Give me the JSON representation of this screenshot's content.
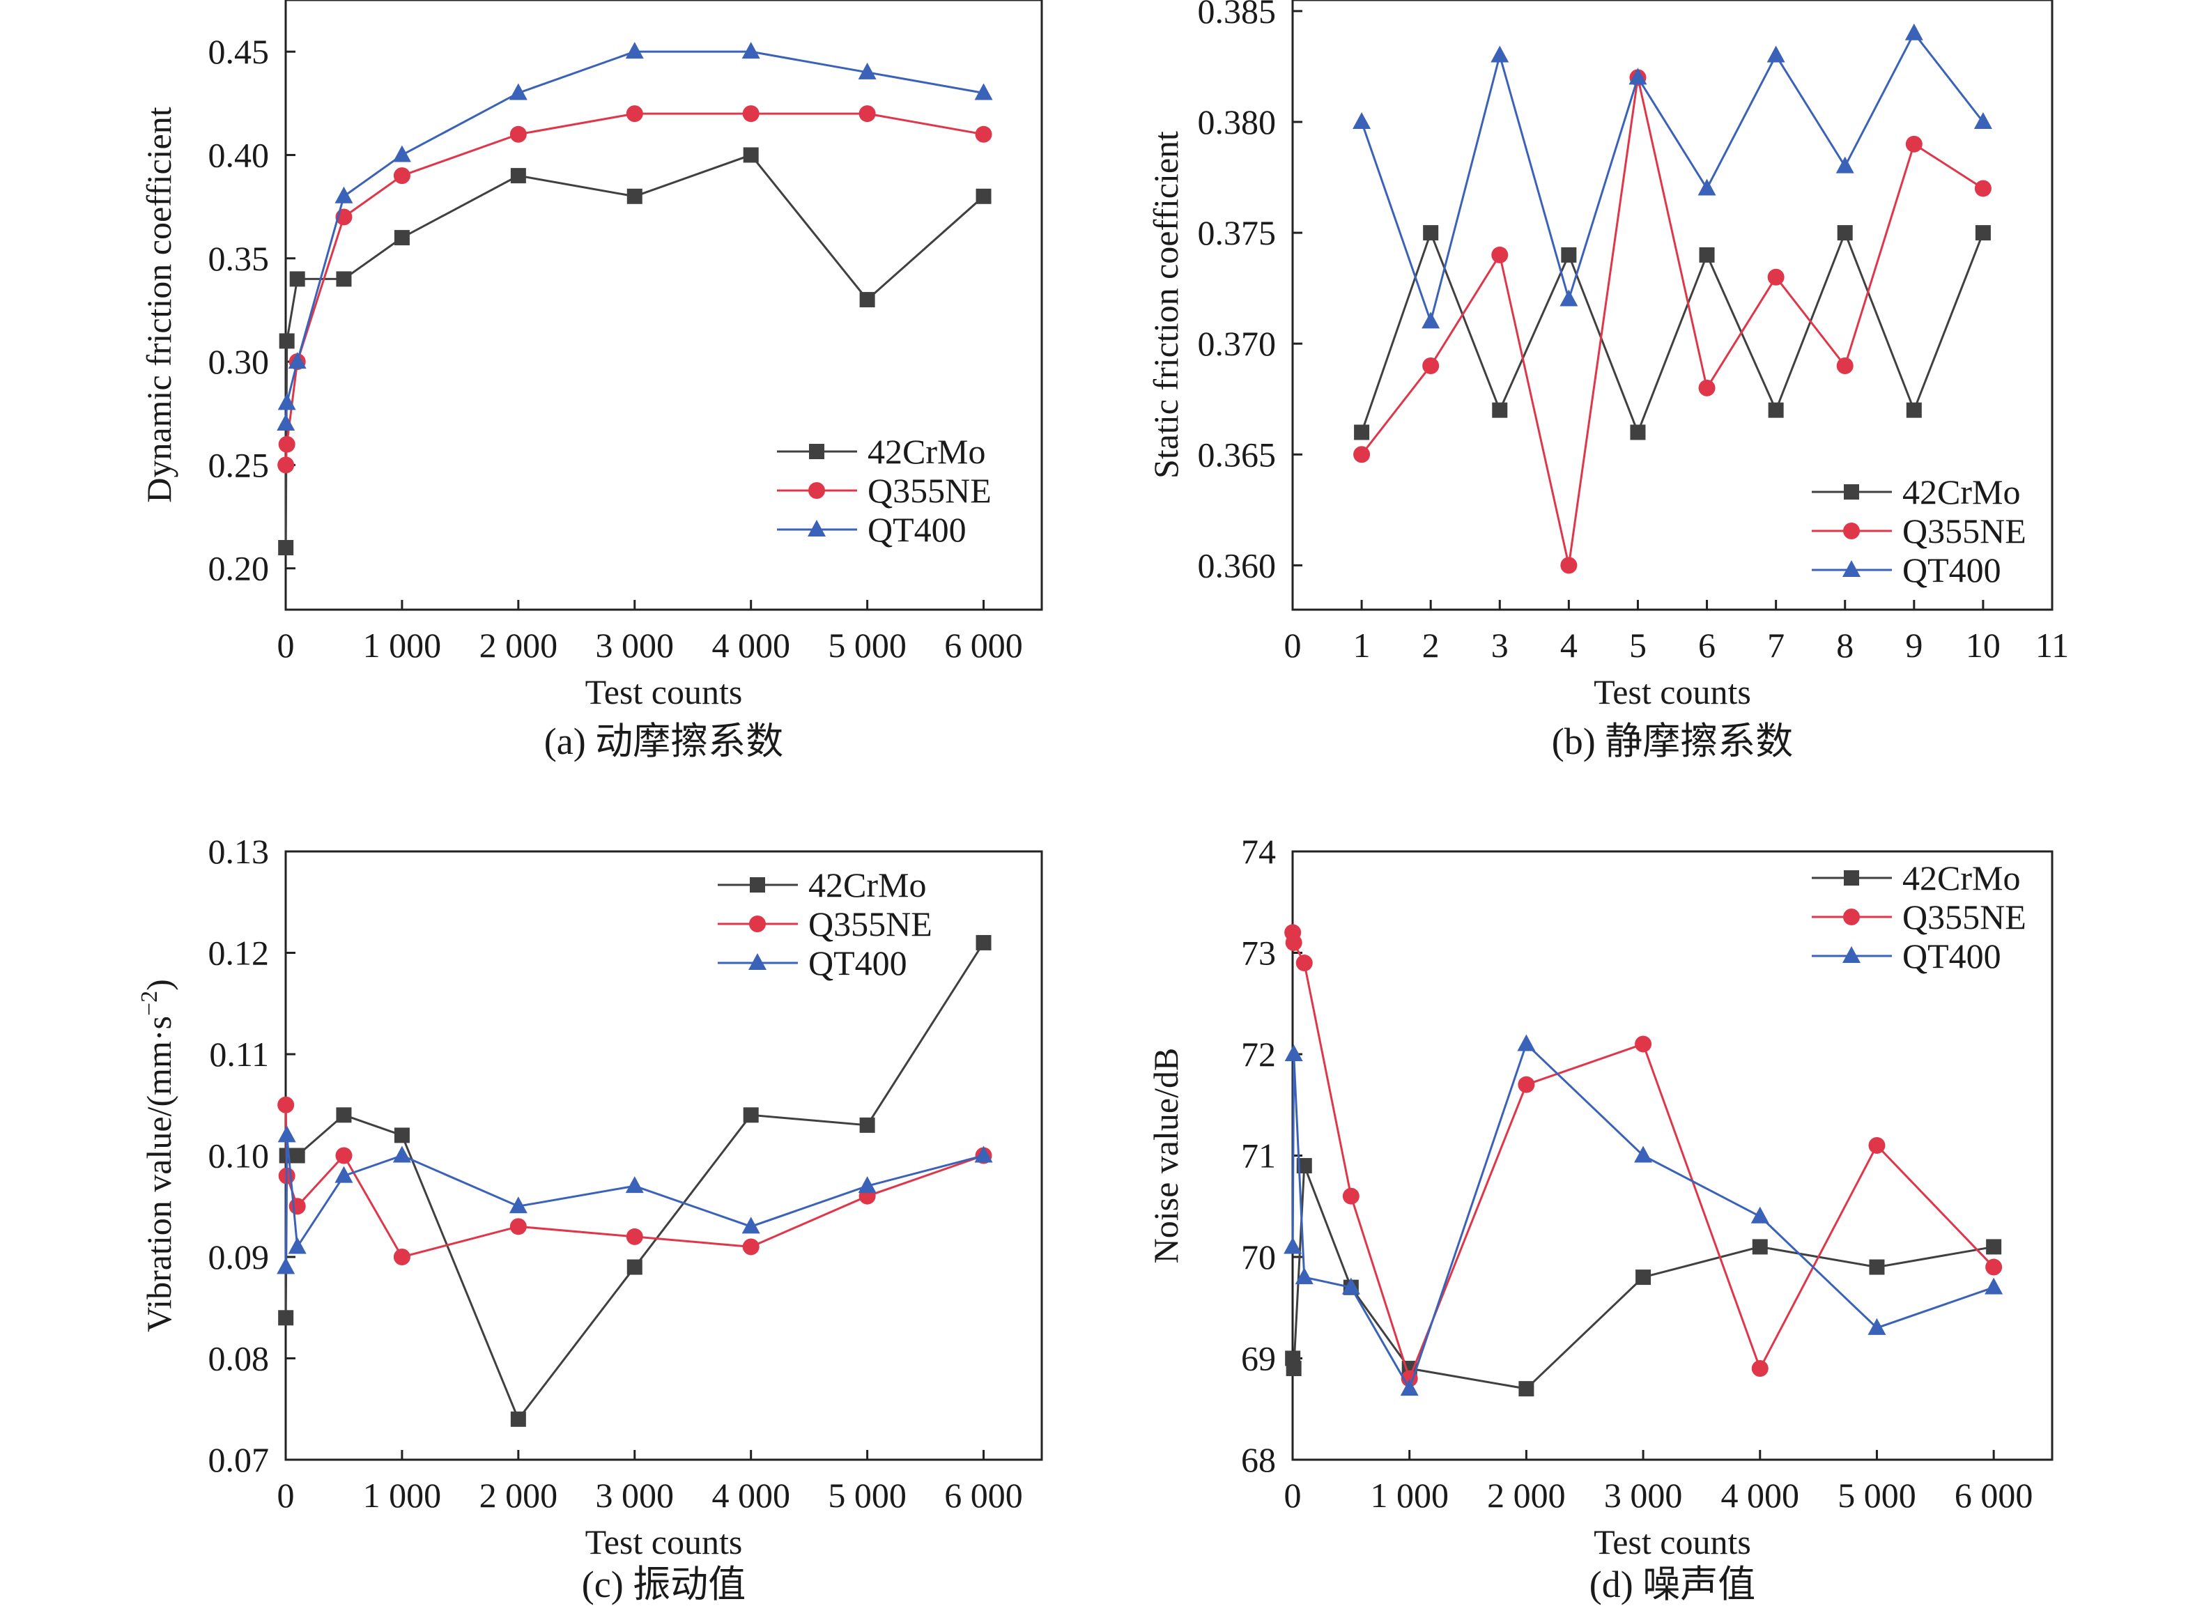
{
  "chart_data": [
    {
      "type": "line",
      "caption": "(a) 动摩擦系数",
      "xlabel": "Test counts",
      "ylabel": "Dynamic friction coefficient",
      "xlim": [
        0,
        6500
      ],
      "ylim": [
        0.18,
        0.475
      ],
      "xticks": [
        0,
        1000,
        2000,
        3000,
        4000,
        5000,
        6000
      ],
      "xtick_labels": [
        "0",
        "1 000",
        "2 000",
        "3 000",
        "4 000",
        "5 000",
        "6 000"
      ],
      "yticks": [
        0.2,
        0.25,
        0.3,
        0.35,
        0.4,
        0.45
      ],
      "ytick_labels": [
        "0.20",
        "0.25",
        "0.30",
        "0.35",
        "0.40",
        "0.45"
      ],
      "legend": "lower-right",
      "grid": false,
      "x": [
        1,
        10,
        100,
        500,
        1000,
        2000,
        3000,
        4000,
        5000,
        6000
      ],
      "series": [
        {
          "name": "42CrMo",
          "color": "#404040",
          "marker": "square",
          "values": [
            0.21,
            0.31,
            0.34,
            0.34,
            0.36,
            0.39,
            0.38,
            0.4,
            0.33,
            0.38
          ]
        },
        {
          "name": "Q355NE",
          "color": "#e0364a",
          "marker": "circle",
          "values": [
            0.25,
            0.26,
            0.3,
            0.37,
            0.39,
            0.41,
            0.42,
            0.42,
            0.42,
            0.41
          ]
        },
        {
          "name": "QT400",
          "color": "#3a62b8",
          "marker": "triangle",
          "values": [
            0.27,
            0.28,
            0.3,
            0.38,
            0.4,
            0.43,
            0.45,
            0.45,
            0.44,
            0.43
          ]
        }
      ]
    },
    {
      "type": "line",
      "caption": "(b) 静摩擦系数",
      "xlabel": "Test counts",
      "ylabel": "Static friction coefficient",
      "xlim": [
        0,
        11
      ],
      "ylim": [
        0.358,
        0.3855
      ],
      "xticks": [
        0,
        1,
        2,
        3,
        4,
        5,
        6,
        7,
        8,
        9,
        10,
        11
      ],
      "xtick_labels": [
        "0",
        "1",
        "2",
        "3",
        "4",
        "5",
        "6",
        "7",
        "8",
        "9",
        "10",
        "11"
      ],
      "yticks": [
        0.36,
        0.365,
        0.37,
        0.375,
        0.38,
        0.385
      ],
      "ytick_labels": [
        "0.360",
        "0.365",
        "0.370",
        "0.375",
        "0.380",
        "0.385"
      ],
      "legend": "lower-right",
      "grid": false,
      "x": [
        1,
        2,
        3,
        4,
        5,
        6,
        7,
        8,
        9,
        10
      ],
      "series": [
        {
          "name": "42CrMo",
          "color": "#404040",
          "marker": "square",
          "values": [
            0.366,
            0.375,
            0.367,
            0.374,
            0.366,
            0.374,
            0.367,
            0.375,
            0.367,
            0.375
          ]
        },
        {
          "name": "Q355NE",
          "color": "#e0364a",
          "marker": "circle",
          "values": [
            0.365,
            0.369,
            0.374,
            0.36,
            0.382,
            0.368,
            0.373,
            0.369,
            0.379,
            0.377
          ]
        },
        {
          "name": "QT400",
          "color": "#3a62b8",
          "marker": "triangle",
          "values": [
            0.38,
            0.371,
            0.383,
            0.372,
            0.382,
            0.377,
            0.383,
            0.378,
            0.384,
            0.38
          ]
        }
      ]
    },
    {
      "type": "line",
      "caption": "(c) 振动值",
      "xlabel": "Test counts",
      "ylabel": "Vibration value/(mm·s",
      "ylabel_sup": "−2",
      "ylabel_end": ")",
      "xlim": [
        0,
        6500
      ],
      "ylim": [
        0.07,
        0.13
      ],
      "xticks": [
        0,
        1000,
        2000,
        3000,
        4000,
        5000,
        6000
      ],
      "xtick_labels": [
        "0",
        "1 000",
        "2 000",
        "3 000",
        "4 000",
        "5 000",
        "6 000"
      ],
      "yticks": [
        0.07,
        0.08,
        0.09,
        0.1,
        0.11,
        0.12,
        0.13
      ],
      "ytick_labels": [
        "0.07",
        "0.08",
        "0.09",
        "0.10",
        "0.11",
        "0.12",
        "0.13"
      ],
      "legend": "top-right",
      "grid": false,
      "x": [
        1,
        10,
        100,
        500,
        1000,
        2000,
        3000,
        4000,
        5000,
        6000
      ],
      "series": [
        {
          "name": "42CrMo",
          "color": "#404040",
          "marker": "square",
          "values": [
            0.084,
            0.1,
            0.1,
            0.104,
            0.102,
            0.074,
            0.089,
            0.104,
            0.103,
            0.121
          ]
        },
        {
          "name": "Q355NE",
          "color": "#e0364a",
          "marker": "circle",
          "values": [
            0.105,
            0.098,
            0.095,
            0.1,
            0.09,
            0.093,
            0.092,
            0.091,
            0.096,
            0.1
          ]
        },
        {
          "name": "QT400",
          "color": "#3a62b8",
          "marker": "triangle",
          "values": [
            0.089,
            0.102,
            0.091,
            0.098,
            0.1,
            0.095,
            0.097,
            0.093,
            0.097,
            0.1
          ]
        }
      ]
    },
    {
      "type": "line",
      "caption": "(d) 噪声值",
      "xlabel": "Test counts",
      "ylabel": "Noise value/dB",
      "xlim": [
        0,
        6500
      ],
      "ylim": [
        68,
        74
      ],
      "xticks": [
        0,
        1000,
        2000,
        3000,
        4000,
        5000,
        6000
      ],
      "xtick_labels": [
        "0",
        "1 000",
        "2 000",
        "3 000",
        "4 000",
        "5 000",
        "6 000"
      ],
      "yticks": [
        68,
        69,
        70,
        71,
        72,
        73,
        74
      ],
      "ytick_labels": [
        "68",
        "69",
        "70",
        "71",
        "72",
        "73",
        "74"
      ],
      "legend": "top-right",
      "grid": false,
      "x": [
        1,
        10,
        100,
        500,
        1000,
        2000,
        3000,
        4000,
        5000,
        6000
      ],
      "series": [
        {
          "name": "42CrMo",
          "color": "#404040",
          "marker": "square",
          "values": [
            69.0,
            68.9,
            70.9,
            69.7,
            68.9,
            68.7,
            69.8,
            70.1,
            69.9,
            70.1
          ]
        },
        {
          "name": "Q355NE",
          "color": "#e0364a",
          "marker": "circle",
          "values": [
            73.2,
            73.1,
            72.9,
            70.6,
            68.8,
            71.7,
            72.1,
            68.9,
            71.1,
            69.9
          ]
        },
        {
          "name": "QT400",
          "color": "#3a62b8",
          "marker": "triangle",
          "values": [
            70.1,
            72.0,
            69.8,
            69.7,
            68.7,
            72.1,
            71.0,
            70.4,
            69.3,
            69.7
          ]
        }
      ]
    }
  ]
}
